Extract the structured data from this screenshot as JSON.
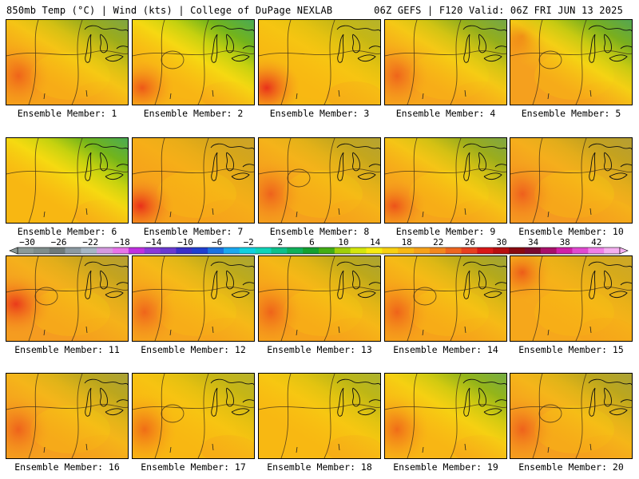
{
  "header": {
    "left": "850mb Temp (°C) | Wind (kts) | College of DuPage NEXLAB",
    "right": "06Z GEFS | F120 Valid: 06Z FRI JUN 13 2025"
  },
  "member_label_prefix": "Ensemble Member:",
  "members": [
    {
      "number": "1",
      "base": "#f6a21a",
      "hot": "west",
      "cool": 0.55
    },
    {
      "number": "2",
      "base": "#f8b315",
      "hot": "southwest",
      "cool": 0.8
    },
    {
      "number": "3",
      "base": "#f7b812",
      "hot": "southwest-strong",
      "cool": 0.3
    },
    {
      "number": "4",
      "base": "#f6a51c",
      "hot": "west",
      "cool": 0.6
    },
    {
      "number": "5",
      "base": "#f5a01e",
      "hot": "northwest",
      "cool": 0.75
    },
    {
      "number": "6",
      "base": "#f8b712",
      "hot": "none",
      "cool": 0.8
    },
    {
      "number": "7",
      "base": "#f6a21a",
      "hot": "southwest-strong",
      "cool": 0.2
    },
    {
      "number": "8",
      "base": "#f5a01d",
      "hot": "west",
      "cool": 0.3
    },
    {
      "number": "9",
      "base": "#f6a41b",
      "hot": "southwest",
      "cool": 0.55
    },
    {
      "number": "10",
      "base": "#f59a20",
      "hot": "west",
      "cool": 0.3
    },
    {
      "number": "11",
      "base": "#f59c20",
      "hot": "west-strong",
      "cool": 0.3
    },
    {
      "number": "12",
      "base": "#f6a51c",
      "hot": "west",
      "cool": 0.35
    },
    {
      "number": "13",
      "base": "#f6a21a",
      "hot": "west",
      "cool": 0.35
    },
    {
      "number": "14",
      "base": "#f6a21a",
      "hot": "west",
      "cool": 0.4
    },
    {
      "number": "15",
      "base": "#f6a71b",
      "hot": "northwest",
      "cool": 0.2
    },
    {
      "number": "16",
      "base": "#f59f1e",
      "hot": "west",
      "cool": 0.35
    },
    {
      "number": "17",
      "base": "#f8b612",
      "hot": "west",
      "cool": 0.3
    },
    {
      "number": "18",
      "base": "#f8b812",
      "hot": "none",
      "cool": 0.35
    },
    {
      "number": "19",
      "base": "#f8b515",
      "hot": "west",
      "cool": 0.6
    },
    {
      "number": "20",
      "base": "#f59f1e",
      "hot": "west",
      "cool": 0.35
    }
  ],
  "colorbar": {
    "labels": [
      "−30",
      "−26",
      "−22",
      "−18",
      "−14",
      "−10",
      "−6",
      "−2",
      "2",
      "6",
      "10",
      "14",
      "18",
      "22",
      "26",
      "30",
      "34",
      "38",
      "42"
    ],
    "colors": [
      "#8c9a98",
      "#7f8d8b",
      "#6f7a7a",
      "#8c9aa2",
      "#a6b6c4",
      "#d59ae0",
      "#e874ea",
      "#c030e0",
      "#8a3ad8",
      "#6a3ad0",
      "#3a30c8",
      "#1f3fd0",
      "#1a72e0",
      "#1aa8f0",
      "#10d0e0",
      "#10d4b8",
      "#0ec08a",
      "#10b05a",
      "#14a030",
      "#43ad15",
      "#9fcf0a",
      "#d4e60c",
      "#f8ec10",
      "#f8d012",
      "#f8b814",
      "#f6a21a",
      "#f3881e",
      "#ee6620",
      "#e84020",
      "#d81818",
      "#b80f10",
      "#8a0a10",
      "#7a0a30",
      "#a8106a",
      "#d020a8",
      "#e04ad0",
      "#f080e8",
      "#f4b0f0"
    ]
  }
}
